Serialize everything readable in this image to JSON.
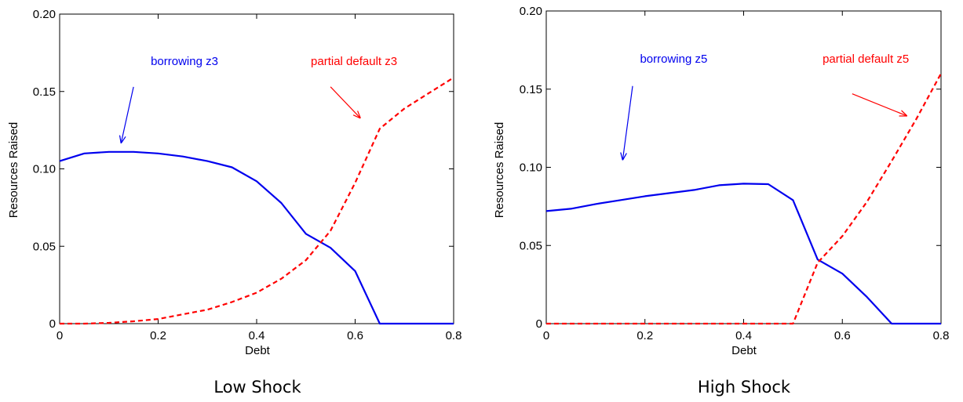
{
  "colors": {
    "borrowing": "#0000ee",
    "default": "#ff0000",
    "axis": "#000000"
  },
  "chart_data": [
    {
      "type": "line",
      "caption": "Low Shock",
      "xlabel": "Debt",
      "ylabel": "Resources Raised",
      "xlim": [
        0,
        0.8
      ],
      "ylim": [
        0,
        0.2
      ],
      "xticks": [
        0,
        0.2,
        0.4,
        0.6,
        0.8
      ],
      "xtick_labels": [
        "0",
        "0.2",
        "0.4",
        "0.6",
        "0.8"
      ],
      "yticks": [
        0,
        0.05,
        0.1,
        0.15,
        0.2
      ],
      "ytick_labels": [
        "0",
        "0.05",
        "0.10",
        "0.15",
        "0.20"
      ],
      "grid": false,
      "series": [
        {
          "style": "solid",
          "color": "#0000ee",
          "x": [
            0,
            0.05,
            0.1,
            0.15,
            0.2,
            0.25,
            0.3,
            0.35,
            0.4,
            0.45,
            0.5,
            0.55,
            0.6,
            0.65,
            0.7,
            0.75,
            0.8
          ],
          "y": [
            0.105,
            0.11,
            0.111,
            0.111,
            0.11,
            0.108,
            0.105,
            0.101,
            0.092,
            0.078,
            0.058,
            0.049,
            0.034,
            0,
            0,
            0,
            0
          ]
        },
        {
          "style": "dashed",
          "color": "#ff0000",
          "x": [
            0,
            0.05,
            0.1,
            0.15,
            0.2,
            0.25,
            0.3,
            0.35,
            0.4,
            0.45,
            0.5,
            0.55,
            0.6,
            0.65,
            0.7,
            0.75,
            0.8
          ],
          "y": [
            0,
            0,
            0.0005,
            0.0015,
            0.003,
            0.006,
            0.009,
            0.014,
            0.02,
            0.029,
            0.041,
            0.06,
            0.091,
            0.126,
            0.139,
            0.149,
            0.159
          ]
        }
      ],
      "annotations": [
        {
          "text": "borrowing z3",
          "color": "#0000ee",
          "x": 0.185,
          "y": 0.167,
          "arrow_from": [
            0.15,
            0.153
          ],
          "arrow_to": [
            0.125,
            0.117
          ]
        },
        {
          "text": "partial default z3",
          "color": "#ff0000",
          "x": 0.51,
          "y": 0.167,
          "arrow_from": [
            0.55,
            0.153
          ],
          "arrow_to": [
            0.61,
            0.133
          ]
        }
      ]
    },
    {
      "type": "line",
      "caption": "High Shock",
      "xlabel": "Debt",
      "ylabel": "Resources Raised",
      "xlim": [
        0,
        0.8
      ],
      "ylim": [
        0,
        0.2
      ],
      "xticks": [
        0,
        0.2,
        0.4,
        0.6,
        0.8
      ],
      "xtick_labels": [
        "0",
        "0.2",
        "0.4",
        "0.6",
        "0.8"
      ],
      "yticks": [
        0,
        0.05,
        0.1,
        0.15,
        0.2
      ],
      "ytick_labels": [
        "0",
        "0.05",
        "0.10",
        "0.15",
        "0.20"
      ],
      "grid": false,
      "series": [
        {
          "style": "solid",
          "color": "#0000ee",
          "x": [
            0,
            0.05,
            0.1,
            0.15,
            0.2,
            0.25,
            0.3,
            0.35,
            0.4,
            0.45,
            0.5,
            0.55,
            0.6,
            0.65,
            0.7,
            0.75,
            0.8
          ],
          "y": [
            0.072,
            0.0735,
            0.0765,
            0.079,
            0.0815,
            0.0835,
            0.0855,
            0.0885,
            0.0895,
            0.0892,
            0.079,
            0.041,
            0.032,
            0.017,
            0,
            0,
            0
          ]
        },
        {
          "style": "dashed",
          "color": "#ff0000",
          "x": [
            0,
            0.05,
            0.1,
            0.15,
            0.2,
            0.25,
            0.3,
            0.35,
            0.4,
            0.45,
            0.5,
            0.55,
            0.6,
            0.65,
            0.7,
            0.75,
            0.8
          ],
          "y": [
            0,
            0,
            0,
            0,
            0,
            0,
            0,
            0,
            0,
            0,
            0,
            0.039,
            0.056,
            0.078,
            0.104,
            0.131,
            0.16
          ]
        }
      ],
      "annotations": [
        {
          "text": "borrowing z5",
          "color": "#0000ee",
          "x": 0.19,
          "y": 0.167,
          "arrow_from": [
            0.175,
            0.152
          ],
          "arrow_to": [
            0.155,
            0.105
          ]
        },
        {
          "text": "partial default z5",
          "color": "#ff0000",
          "x": 0.56,
          "y": 0.167,
          "arrow_from": [
            0.62,
            0.147
          ],
          "arrow_to": [
            0.73,
            0.133
          ]
        }
      ]
    }
  ]
}
